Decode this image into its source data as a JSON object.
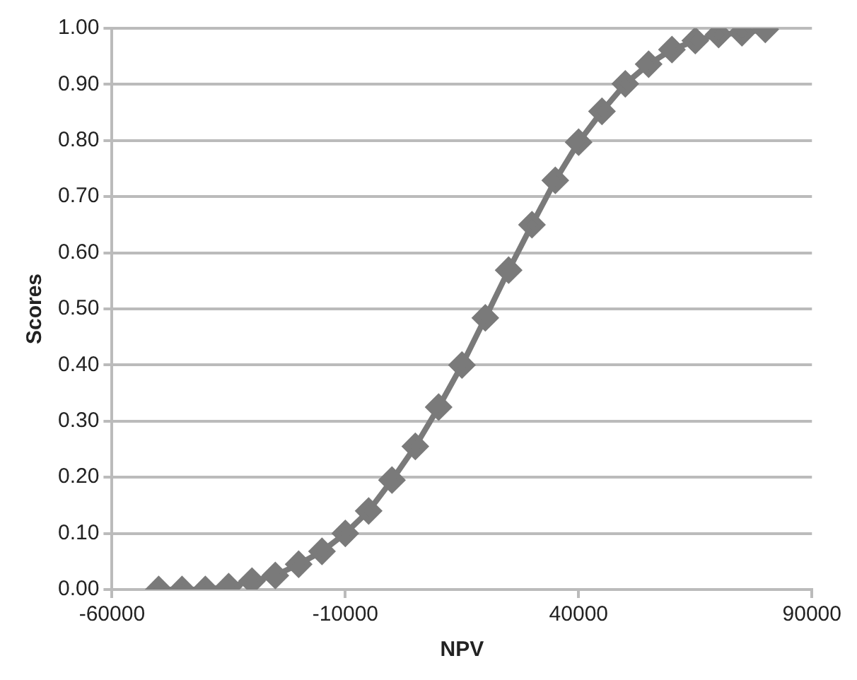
{
  "chart_data": {
    "type": "line",
    "xlabel": "NPV",
    "ylabel": "Scores",
    "x": [
      -50000,
      -45000,
      -40000,
      -35000,
      -30000,
      -25000,
      -20000,
      -15000,
      -10000,
      -5000,
      0,
      5000,
      10000,
      15000,
      20000,
      25000,
      30000,
      35000,
      40000,
      45000,
      50000,
      55000,
      60000,
      65000,
      70000,
      75000,
      80000
    ],
    "series": [
      {
        "color": "#7a7a7a",
        "values": [
          0,
          0,
          0,
          0.005,
          0.015,
          0.025,
          0.045,
          0.068,
          0.1,
          0.14,
          0.195,
          0.255,
          0.325,
          0.4,
          0.484,
          0.569,
          0.65,
          0.729,
          0.797,
          0.852,
          0.901,
          0.936,
          0.962,
          0.978,
          0.989,
          0.992,
          0.998
        ]
      }
    ],
    "xlim": [
      -60000,
      90000
    ],
    "xticks": [
      -60000,
      -10000,
      40000,
      90000
    ],
    "ylim": [
      0,
      1
    ],
    "yticks": [
      {
        "value": 0,
        "label": "0.00"
      },
      {
        "value": 0.1,
        "label": "0.10"
      },
      {
        "value": 0.2,
        "label": "0.20"
      },
      {
        "value": 0.3,
        "label": "0.30"
      },
      {
        "value": 0.4,
        "label": "0.40"
      },
      {
        "value": 0.5,
        "label": "0.50"
      },
      {
        "value": 0.6,
        "label": "0.60"
      },
      {
        "value": 0.7,
        "label": "0.70"
      },
      {
        "value": 0.8,
        "label": "0.80"
      },
      {
        "value": 0.9,
        "label": "0.90"
      },
      {
        "value": 1,
        "label": "1.00"
      }
    ],
    "grid": "y",
    "legend": false,
    "marker": "diamond",
    "line_style": "solid"
  }
}
